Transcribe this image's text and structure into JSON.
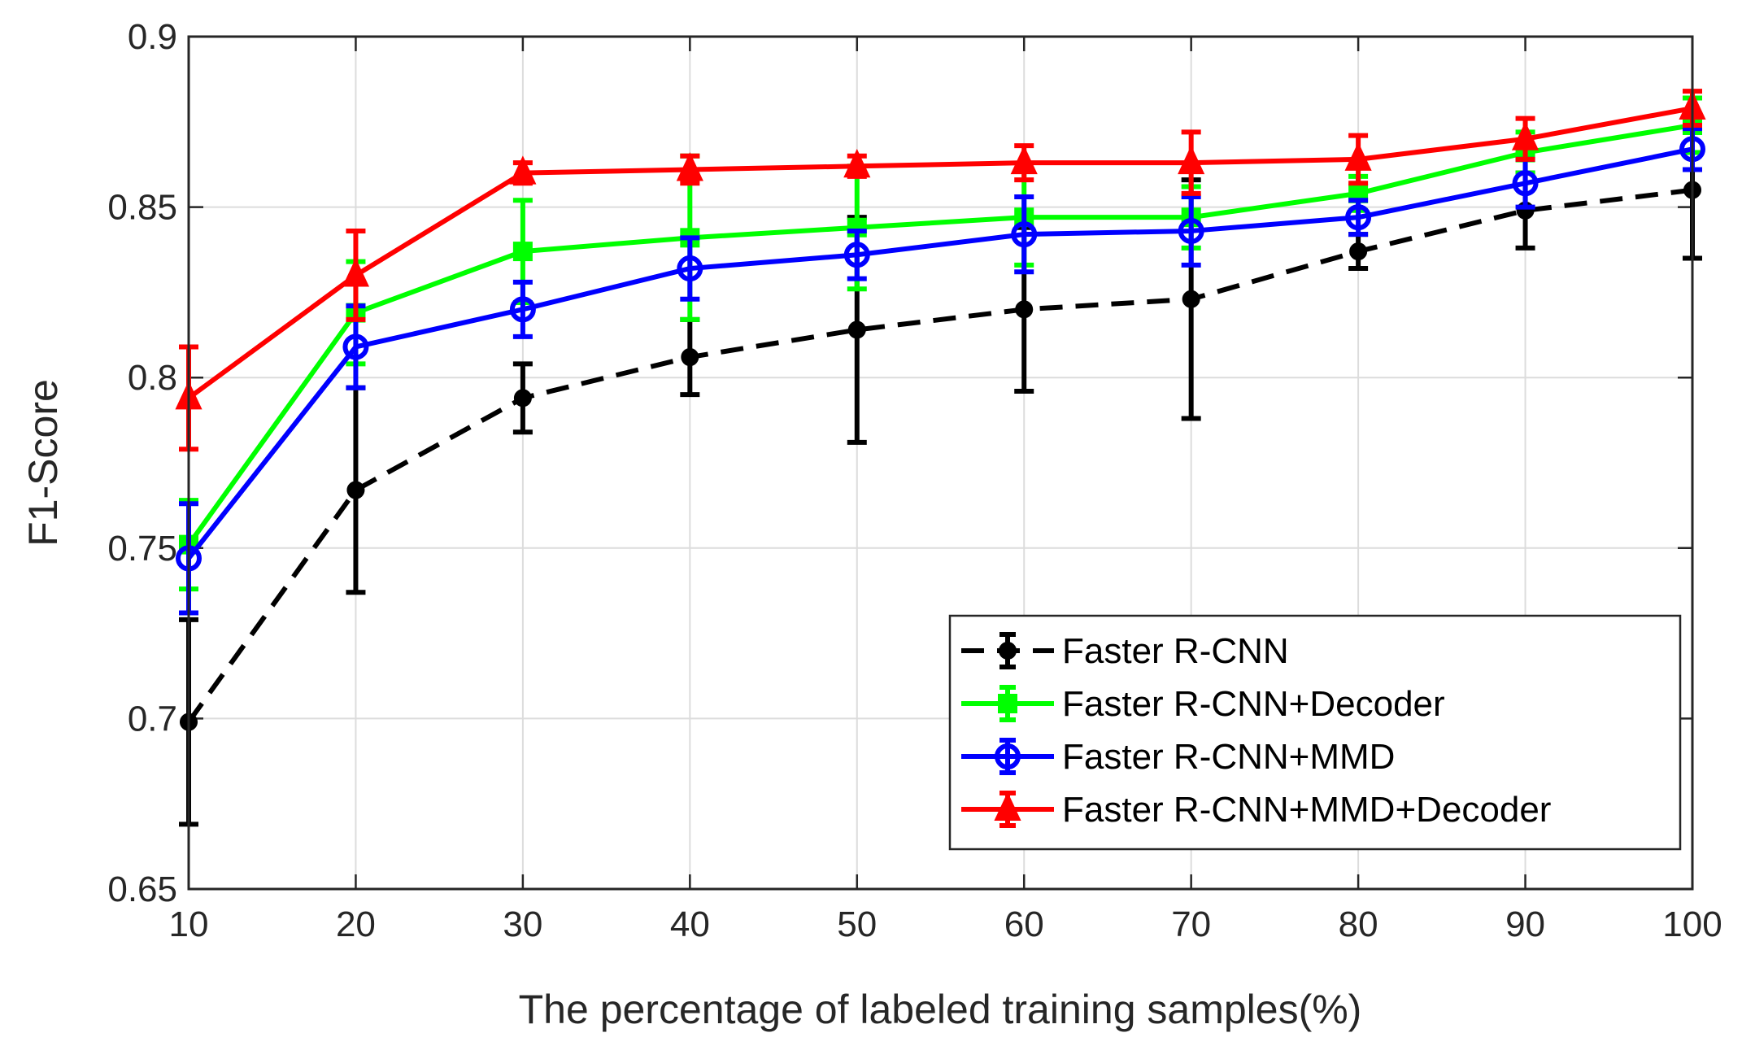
{
  "chart_data": {
    "type": "line",
    "title": "",
    "xlabel": "The percentage of labeled training samples(%)",
    "ylabel": "F1-Score",
    "xlim": [
      10,
      100
    ],
    "ylim": [
      0.65,
      0.9
    ],
    "grid": true,
    "legend_position": "bottom-right",
    "x": [
      10,
      20,
      30,
      40,
      50,
      60,
      70,
      80,
      90,
      100
    ],
    "x_tick_labels": [
      "10",
      "20",
      "30",
      "40",
      "50",
      "60",
      "70",
      "80",
      "90",
      "100"
    ],
    "y_ticks": [
      0.65,
      0.7,
      0.75,
      0.8,
      0.85,
      0.9
    ],
    "y_tick_labels": [
      "0.65",
      "0.7",
      "0.75",
      "0.8",
      "0.85",
      "0.9"
    ],
    "series": [
      {
        "name": "Faster R-CNN",
        "color": "#000000",
        "line_style": "dashed",
        "marker": "dot",
        "values": [
          0.699,
          0.767,
          0.794,
          0.806,
          0.814,
          0.82,
          0.823,
          0.837,
          0.849,
          0.855
        ],
        "err_low": [
          0.669,
          0.737,
          0.784,
          0.795,
          0.781,
          0.796,
          0.788,
          0.832,
          0.838,
          0.835
        ],
        "err_high": [
          0.729,
          0.797,
          0.804,
          0.817,
          0.847,
          0.844,
          0.858,
          0.842,
          0.86,
          0.875
        ]
      },
      {
        "name": "Faster R-CNN+Decoder",
        "color": "#00ff00",
        "line_style": "solid",
        "marker": "square",
        "values": [
          0.751,
          0.819,
          0.837,
          0.841,
          0.844,
          0.847,
          0.847,
          0.854,
          0.866,
          0.874
        ],
        "err_low": [
          0.738,
          0.804,
          0.822,
          0.817,
          0.826,
          0.833,
          0.838,
          0.849,
          0.86,
          0.866
        ],
        "err_high": [
          0.764,
          0.834,
          0.852,
          0.865,
          0.862,
          0.861,
          0.856,
          0.859,
          0.872,
          0.882
        ]
      },
      {
        "name": "Faster R-CNN+MMD",
        "color": "#0000ff",
        "line_style": "solid",
        "marker": "circle",
        "values": [
          0.747,
          0.809,
          0.82,
          0.832,
          0.836,
          0.842,
          0.843,
          0.847,
          0.857,
          0.867
        ],
        "err_low": [
          0.731,
          0.797,
          0.812,
          0.823,
          0.829,
          0.831,
          0.833,
          0.842,
          0.85,
          0.861
        ],
        "err_high": [
          0.763,
          0.821,
          0.828,
          0.841,
          0.843,
          0.853,
          0.853,
          0.852,
          0.864,
          0.873
        ]
      },
      {
        "name": "Faster R-CNN+MMD+Decoder",
        "color": "#ff0000",
        "line_style": "solid",
        "marker": "triangle",
        "values": [
          0.794,
          0.83,
          0.86,
          0.861,
          0.862,
          0.863,
          0.863,
          0.864,
          0.87,
          0.879
        ],
        "err_low": [
          0.779,
          0.817,
          0.857,
          0.857,
          0.859,
          0.858,
          0.854,
          0.857,
          0.864,
          0.874
        ],
        "err_high": [
          0.809,
          0.843,
          0.863,
          0.865,
          0.865,
          0.868,
          0.872,
          0.871,
          0.876,
          0.884
        ]
      }
    ]
  }
}
